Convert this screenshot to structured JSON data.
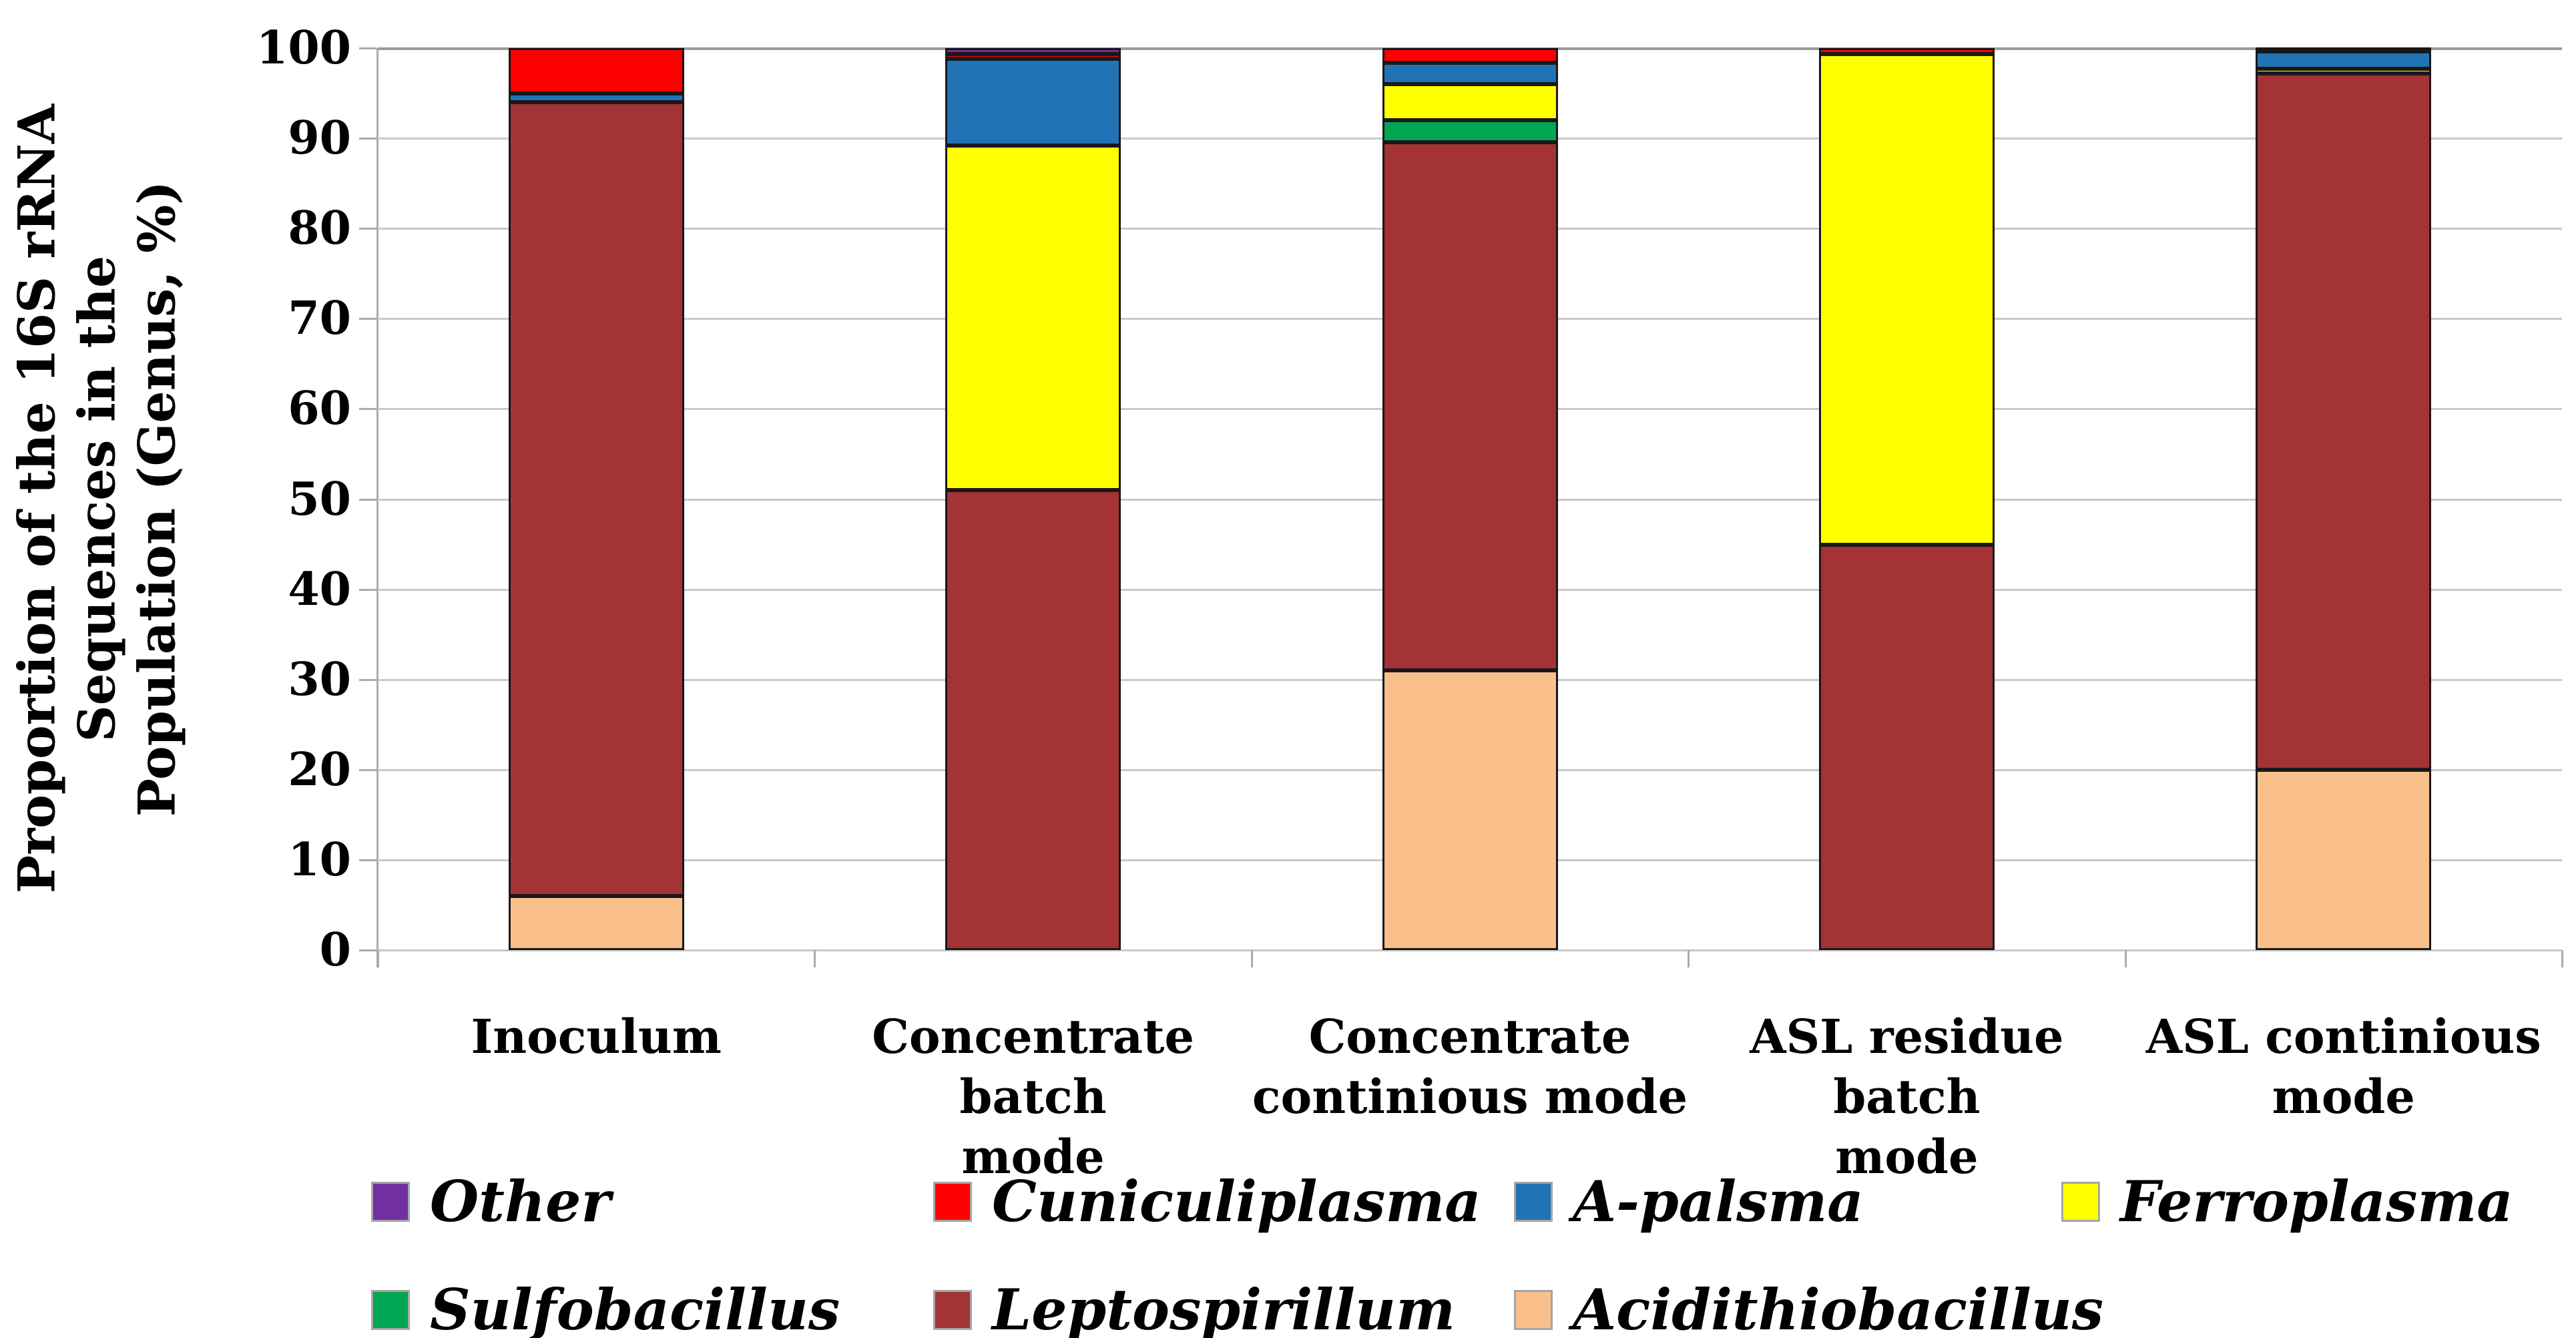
{
  "figure_type": "stacked-bar-chart",
  "background_color": "#FFFFFF",
  "chart_data": {
    "type": "bar",
    "stacked": true,
    "title": "",
    "ylabel": "Proportion of the 16S rRNA Sequences in the Population (Genus, %)",
    "ylabel_lines": [
      "Proportion of the 16S rRNA",
      "Sequences in the",
      "Population (Genus, %)"
    ],
    "ylim": [
      0,
      100
    ],
    "yticks": [
      0,
      10,
      20,
      30,
      40,
      50,
      60,
      70,
      80,
      90,
      100
    ],
    "grid": true,
    "legend_position": "bottom",
    "categories": [
      "Inoculum",
      "Concentrate batch mode",
      "Concentrate continious mode",
      "ASL residue batch mode",
      "ASL continious mode"
    ],
    "category_label_lines": [
      [
        "Inoculum"
      ],
      [
        "Concentrate batch",
        "mode"
      ],
      [
        "Concentrate",
        "continious mode"
      ],
      [
        "ASL residue batch",
        "mode"
      ],
      [
        "ASL continious",
        "mode"
      ]
    ],
    "series": [
      {
        "name": "Acidithiobacillus",
        "color": "#FAC08B",
        "values": [
          6,
          0,
          31,
          0,
          20
        ]
      },
      {
        "name": "Leptospirillum",
        "color": "#A33334",
        "values": [
          88,
          51,
          58.6,
          44.9,
          77.2
        ]
      },
      {
        "name": "Sulfobacillus",
        "color": "#00A651",
        "values": [
          0,
          0,
          2.4,
          0,
          0
        ]
      },
      {
        "name": "Ferroplasma",
        "color": "#FFFF00",
        "values": [
          0,
          38.2,
          4,
          54.4,
          0.5
        ]
      },
      {
        "name": "A-palsma",
        "color": "#2073B4",
        "values": [
          1,
          9.6,
          2.4,
          0,
          1.9
        ]
      },
      {
        "name": "Cuniculiplasma",
        "color": "#FE0000",
        "values": [
          5,
          0.5,
          1.6,
          0.7,
          0.4
        ]
      },
      {
        "name": "Other",
        "color": "#7030A0",
        "values": [
          0,
          0.7,
          0,
          0,
          0
        ]
      }
    ],
    "legend_rows": [
      [
        "Other",
        "Cuniculiplasma",
        "A-palsma",
        "Ferroplasma"
      ],
      [
        "Sulfobacillus",
        "Leptospirillum",
        "Acidithiobacillus"
      ]
    ]
  },
  "colors": {
    "gridline": "#C9C9C9",
    "gridline_top": "#9B9B9B",
    "axis": "#ABABAB",
    "segment_border": "#1A171B",
    "swatch_border": "#A6A6A6",
    "text": "#000000"
  }
}
